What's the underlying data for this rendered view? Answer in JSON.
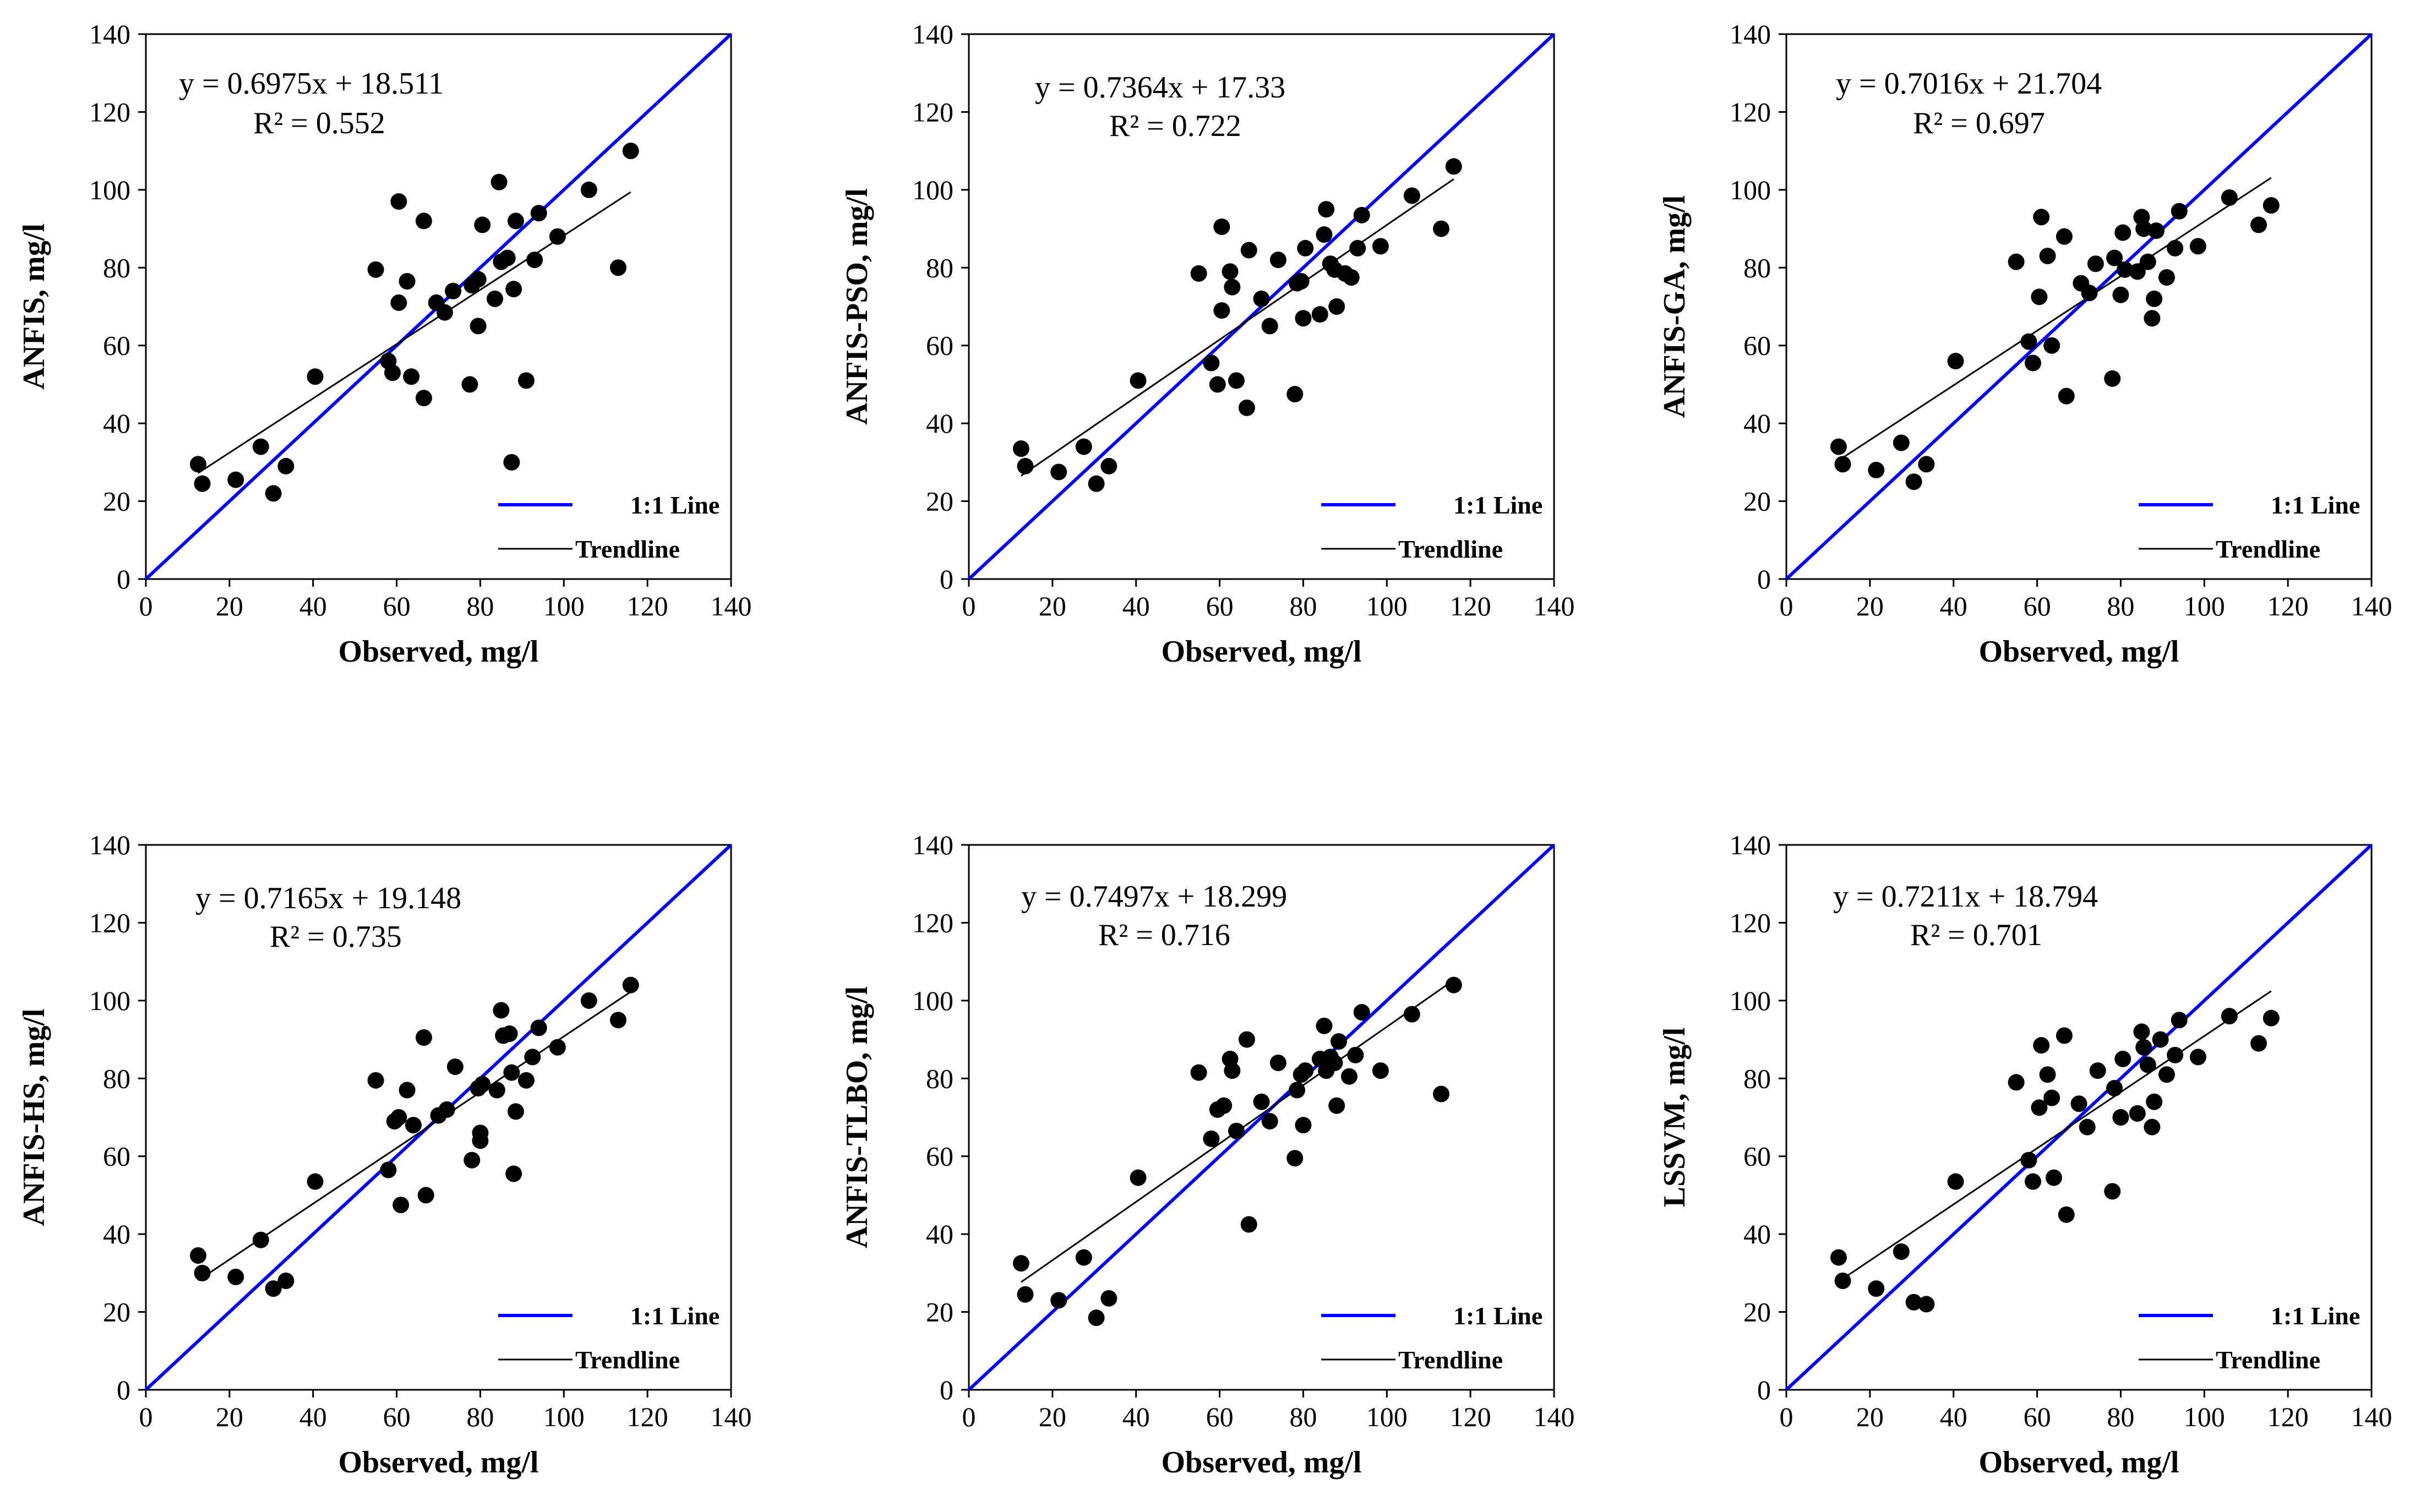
{
  "figure": {
    "background": "#ffffff",
    "one_to_one_color": "#0000ff",
    "trend_color": "#000000",
    "point_color": "#000000",
    "legend": {
      "one_to_one": "1:1 Line",
      "trend": "Trendline"
    },
    "xlabel": "Observed, mg/l"
  },
  "chart_data": [
    {
      "type": "scatter",
      "name": "ANFIS",
      "ylabel": "ANFIS, mg/l",
      "xlabel": "Observed, mg/l",
      "equation": "y = 0.6975x + 18.511",
      "r2": "R² = 0.552",
      "slope": 0.6975,
      "intercept": 18.511,
      "xlim": [
        0,
        140
      ],
      "ylim": [
        0,
        140
      ],
      "ticks": [
        "0",
        "20",
        "40",
        "60",
        "80",
        "100",
        "120",
        "140"
      ],
      "legend_loc": "lower-right",
      "x": [
        12.5,
        13.5,
        21.5,
        27.5,
        30.5,
        33.5,
        40.5,
        55,
        58,
        59,
        60.5,
        60.5,
        62.5,
        63.5,
        66.5,
        66.5,
        69.5,
        71.5,
        73.5,
        77.5,
        78,
        79.5,
        79.5,
        80.5,
        83.5,
        84.5,
        85,
        86.5,
        87.5,
        88,
        88.5,
        91,
        93,
        94,
        98.5,
        106,
        113,
        116
      ],
      "y": [
        29.5,
        24.5,
        25.5,
        34,
        22,
        29,
        52,
        79.5,
        56,
        53,
        71,
        97,
        76.5,
        52,
        92,
        46.5,
        71,
        68.5,
        74,
        50,
        75.5,
        77,
        65,
        91,
        72,
        102,
        81.5,
        82.5,
        30,
        74.5,
        92,
        51,
        82,
        94,
        88,
        100,
        80,
        110
      ]
    },
    {
      "type": "scatter",
      "name": "ANFIS-PSO",
      "ylabel": "ANFIS-PSO, mg/l",
      "xlabel": "Observed, mg/l",
      "equation": "y = 0.7364x + 17.33",
      "r2": "R² = 0.722",
      "slope": 0.7364,
      "intercept": 17.33,
      "xlim": [
        0,
        140
      ],
      "ylim": [
        0,
        140
      ],
      "ticks": [
        "0",
        "20",
        "40",
        "60",
        "80",
        "100",
        "120",
        "140"
      ],
      "legend_loc": "lower-right",
      "x": [
        12.5,
        13.5,
        21.5,
        27.5,
        30.5,
        33.5,
        40.5,
        55,
        58,
        59.5,
        60.5,
        60.5,
        62.5,
        63,
        64,
        66.5,
        67,
        70,
        72,
        74,
        78,
        78.5,
        79.5,
        80,
        80.5,
        84,
        85,
        85.5,
        86.5,
        87.5,
        88,
        90,
        91.5,
        93,
        94,
        98.5,
        106,
        113,
        116
      ],
      "y": [
        33.5,
        29,
        27.5,
        34,
        24.5,
        29,
        51,
        78.5,
        55.5,
        50,
        69,
        90.5,
        79,
        75,
        51,
        44,
        84.5,
        72,
        65,
        82,
        47.5,
        76,
        76.5,
        67,
        85,
        68,
        88.5,
        95,
        81,
        79.5,
        70,
        78.5,
        77.5,
        85,
        93.5,
        85.5,
        98.5,
        90,
        106
      ]
    },
    {
      "type": "scatter",
      "name": "ANFIS-GA",
      "ylabel": "ANFIS-GA, mg/l",
      "xlabel": "Observed, mg/l",
      "equation": "y = 0.7016x + 21.704",
      "r2": "R² = 0.697",
      "slope": 0.7016,
      "intercept": 21.704,
      "xlim": [
        0,
        140
      ],
      "ylim": [
        0,
        140
      ],
      "ticks": [
        "0",
        "20",
        "40",
        "60",
        "80",
        "100",
        "120",
        "140"
      ],
      "legend_loc": "lower-right",
      "x": [
        12.5,
        13.5,
        21.5,
        27.5,
        30.5,
        33.5,
        40.5,
        55,
        58,
        59,
        60.5,
        61,
        62.5,
        63.5,
        66.5,
        67,
        70.5,
        72.5,
        74,
        78,
        78.5,
        80,
        80.5,
        81,
        84,
        85,
        85.5,
        86.5,
        87.5,
        88,
        88.5,
        91,
        93,
        94,
        98.5,
        106,
        113,
        116
      ],
      "y": [
        34,
        29.5,
        28,
        35,
        25,
        29.5,
        56,
        81.5,
        61,
        55.5,
        72.5,
        93,
        83,
        60,
        88,
        47,
        76,
        73.5,
        81,
        51.5,
        82.5,
        73,
        89,
        79.5,
        79,
        93,
        90,
        81.5,
        67,
        72,
        89.5,
        77.5,
        85,
        94.5,
        85.5,
        98,
        91,
        96
      ]
    },
    {
      "type": "scatter",
      "name": "ANFIS-HS",
      "ylabel": "ANFIS-HS, mg/l",
      "xlabel": "Observed, mg/l",
      "equation": "y = 0.7165x + 19.148",
      "r2": "R² = 0.735",
      "slope": 0.7165,
      "intercept": 19.148,
      "xlim": [
        0,
        140
      ],
      "ylim": [
        0,
        140
      ],
      "ticks": [
        "0",
        "20",
        "40",
        "60",
        "80",
        "100",
        "120",
        "140"
      ],
      "legend_loc": "lower-right",
      "x": [
        12.5,
        13.5,
        21.5,
        27.5,
        30.5,
        33.5,
        40.5,
        55,
        58,
        59.5,
        60.5,
        61,
        62.5,
        64,
        66.5,
        67,
        70,
        72,
        74,
        78,
        79.5,
        80,
        80,
        80.5,
        84,
        85,
        85.5,
        87,
        87.5,
        88,
        88.5,
        91,
        92.5,
        94,
        98.5,
        106,
        113,
        116
      ],
      "y": [
        34.5,
        30,
        29,
        38.5,
        26,
        28,
        53.5,
        79.5,
        56.5,
        69,
        70,
        47.5,
        77,
        68,
        90.5,
        50,
        70.5,
        72,
        83,
        59,
        77.5,
        66,
        64,
        78.5,
        77,
        97.5,
        91,
        91.5,
        81.5,
        55.5,
        71.5,
        79.5,
        85.5,
        93,
        88,
        100,
        95,
        104
      ]
    },
    {
      "type": "scatter",
      "name": "ANFIS-TLBO",
      "ylabel": "ANFIS-TLBO, mg/l",
      "xlabel": "Observed, mg/l",
      "equation": "y = 0.7497x + 18.299",
      "r2": "R² = 0.716",
      "slope": 0.7497,
      "intercept": 18.299,
      "xlim": [
        0,
        140
      ],
      "ylim": [
        0,
        140
      ],
      "ticks": [
        "0",
        "20",
        "40",
        "60",
        "80",
        "100",
        "120",
        "140"
      ],
      "legend_loc": "lower-right",
      "x": [
        12.5,
        13.5,
        21.5,
        27.5,
        30.5,
        33.5,
        40.5,
        55,
        58,
        59.5,
        61,
        62.5,
        63,
        64,
        66.5,
        67,
        70,
        72,
        74,
        78,
        78.5,
        79.5,
        80,
        80.5,
        84,
        85,
        85.5,
        86.5,
        87.5,
        88,
        88.5,
        91,
        92.5,
        94,
        98.5,
        106,
        113,
        116
      ],
      "y": [
        32.5,
        24.5,
        23,
        34,
        18.5,
        23.5,
        54.5,
        81.5,
        64.5,
        72,
        73,
        85,
        82,
        66.5,
        90,
        42.5,
        74,
        69,
        84,
        59.5,
        77,
        81,
        68,
        82,
        85,
        93.5,
        82,
        85.5,
        84,
        73,
        89.5,
        80.5,
        86,
        97,
        82,
        96.5,
        76,
        104
      ]
    },
    {
      "type": "scatter",
      "name": "LSSVM",
      "ylabel": "LSSVM, mg/l",
      "xlabel": "Observed, mg/l",
      "equation": "y = 0.7211x + 18.794",
      "r2": "R² = 0.701",
      "slope": 0.7211,
      "intercept": 18.794,
      "xlim": [
        0,
        140
      ],
      "ylim": [
        0,
        140
      ],
      "ticks": [
        "0",
        "20",
        "40",
        "60",
        "80",
        "100",
        "120",
        "140"
      ],
      "legend_loc": "lower-right",
      "x": [
        12.5,
        13.5,
        21.5,
        27.5,
        30.5,
        33.5,
        40.5,
        55,
        58,
        59,
        60.5,
        61,
        62.5,
        63.5,
        64,
        66.5,
        67,
        70,
        72,
        74.5,
        78,
        78.5,
        80,
        80.5,
        84,
        85,
        85.5,
        86.5,
        87.5,
        88,
        89.5,
        91,
        93,
        94,
        98.5,
        106,
        113,
        116
      ],
      "y": [
        34,
        28,
        26,
        35.5,
        22.5,
        22,
        53.5,
        79,
        59,
        53.5,
        72.5,
        88.5,
        81,
        75,
        54.5,
        91,
        45,
        73.5,
        67.5,
        82,
        51,
        77.5,
        70,
        85,
        71,
        92,
        88,
        83.5,
        67.5,
        74,
        90,
        81,
        86,
        95,
        85.5,
        96,
        89,
        95.5
      ]
    }
  ]
}
